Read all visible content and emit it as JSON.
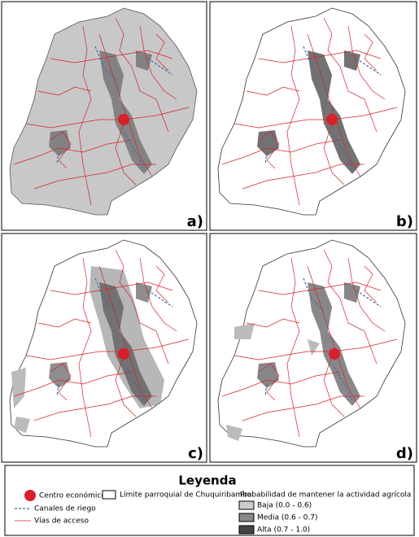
{
  "panels": [
    {
      "label": "a)"
    },
    {
      "label": "b)"
    },
    {
      "label": "c)"
    },
    {
      "label": "d)"
    }
  ],
  "legend": {
    "title": "Leyenda",
    "items": [
      "Centro económico",
      "Límite parroquial de Chuquiribamba",
      "Canales de riego",
      "Vías de acceso"
    ],
    "probability": {
      "title": "Probabilidad de mantener la actividad agrícola",
      "classes": [
        "Baja (0.0 - 0.6)",
        "Media (0.6 - 0.7)",
        "Alta (0.7 - 1.0)"
      ]
    }
  }
}
